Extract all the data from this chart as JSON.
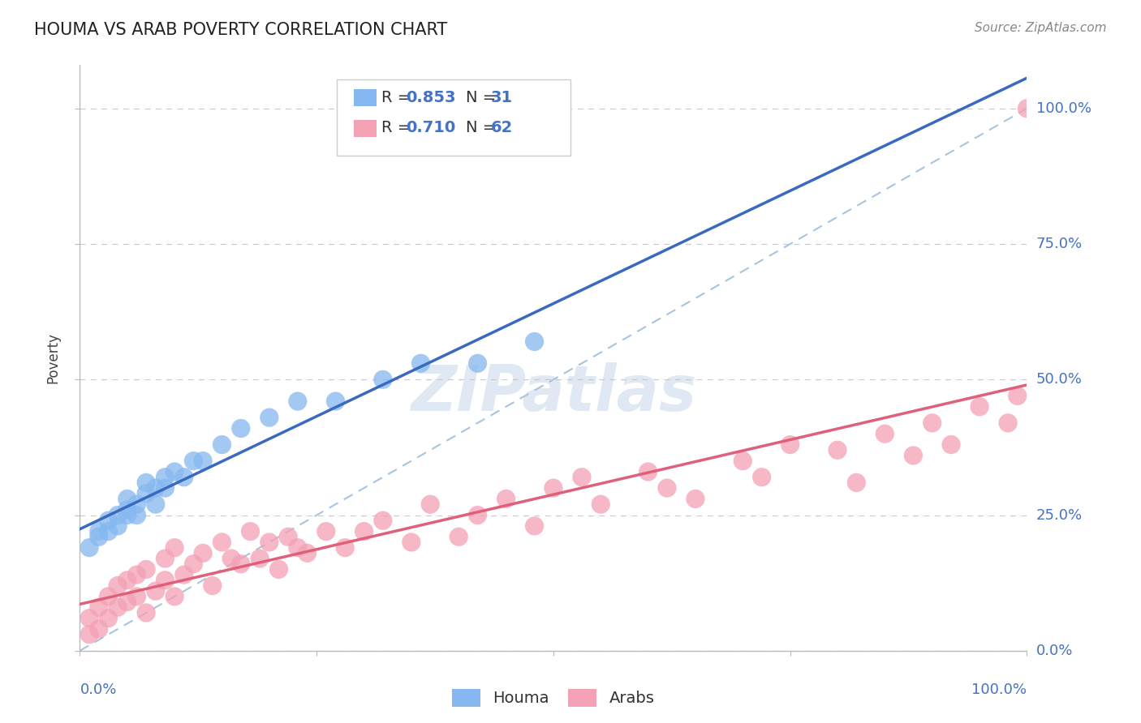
{
  "title": "HOUMA VS ARAB POVERTY CORRELATION CHART",
  "source": "Source: ZipAtlas.com",
  "ylabel": "Poverty",
  "y_tick_labels": [
    "0.0%",
    "25.0%",
    "50.0%",
    "75.0%",
    "100.0%"
  ],
  "y_tick_values": [
    0,
    0.25,
    0.5,
    0.75,
    1.0
  ],
  "x_tick_values": [
    0,
    0.25,
    0.5,
    0.75,
    1.0
  ],
  "houma_R": 0.853,
  "houma_N": 31,
  "arab_R": 0.71,
  "arab_N": 62,
  "houma_color": "#85b8f0",
  "arab_color": "#f4a0b5",
  "houma_line_color": "#3a6abf",
  "arab_line_color": "#e0607a",
  "diagonal_color": "#a8c4e0",
  "background_color": "#ffffff",
  "houma_x": [
    0.01,
    0.02,
    0.02,
    0.03,
    0.03,
    0.04,
    0.04,
    0.05,
    0.05,
    0.05,
    0.06,
    0.06,
    0.07,
    0.07,
    0.08,
    0.08,
    0.09,
    0.09,
    0.1,
    0.11,
    0.12,
    0.13,
    0.15,
    0.17,
    0.2,
    0.23,
    0.27,
    0.32,
    0.36,
    0.42,
    0.48
  ],
  "houma_y": [
    0.19,
    0.21,
    0.22,
    0.22,
    0.24,
    0.23,
    0.25,
    0.26,
    0.25,
    0.28,
    0.25,
    0.27,
    0.29,
    0.31,
    0.27,
    0.3,
    0.3,
    0.32,
    0.33,
    0.32,
    0.35,
    0.35,
    0.38,
    0.41,
    0.43,
    0.46,
    0.46,
    0.5,
    0.53,
    0.53,
    0.57
  ],
  "arab_x": [
    0.01,
    0.01,
    0.02,
    0.02,
    0.03,
    0.03,
    0.04,
    0.04,
    0.05,
    0.05,
    0.06,
    0.06,
    0.07,
    0.07,
    0.08,
    0.09,
    0.09,
    0.1,
    0.1,
    0.11,
    0.12,
    0.13,
    0.14,
    0.15,
    0.16,
    0.17,
    0.18,
    0.19,
    0.2,
    0.21,
    0.22,
    0.23,
    0.24,
    0.26,
    0.28,
    0.3,
    0.32,
    0.35,
    0.37,
    0.4,
    0.42,
    0.45,
    0.48,
    0.5,
    0.53,
    0.55,
    0.6,
    0.62,
    0.65,
    0.7,
    0.72,
    0.75,
    0.8,
    0.82,
    0.85,
    0.88,
    0.9,
    0.92,
    0.95,
    0.98,
    0.99,
    1.0
  ],
  "arab_y": [
    0.03,
    0.06,
    0.04,
    0.08,
    0.06,
    0.1,
    0.08,
    0.12,
    0.09,
    0.13,
    0.1,
    0.14,
    0.07,
    0.15,
    0.11,
    0.13,
    0.17,
    0.1,
    0.19,
    0.14,
    0.16,
    0.18,
    0.12,
    0.2,
    0.17,
    0.16,
    0.22,
    0.17,
    0.2,
    0.15,
    0.21,
    0.19,
    0.18,
    0.22,
    0.19,
    0.22,
    0.24,
    0.2,
    0.27,
    0.21,
    0.25,
    0.28,
    0.23,
    0.3,
    0.32,
    0.27,
    0.33,
    0.3,
    0.28,
    0.35,
    0.32,
    0.38,
    0.37,
    0.31,
    0.4,
    0.36,
    0.42,
    0.38,
    0.45,
    0.42,
    0.47,
    1.0
  ]
}
